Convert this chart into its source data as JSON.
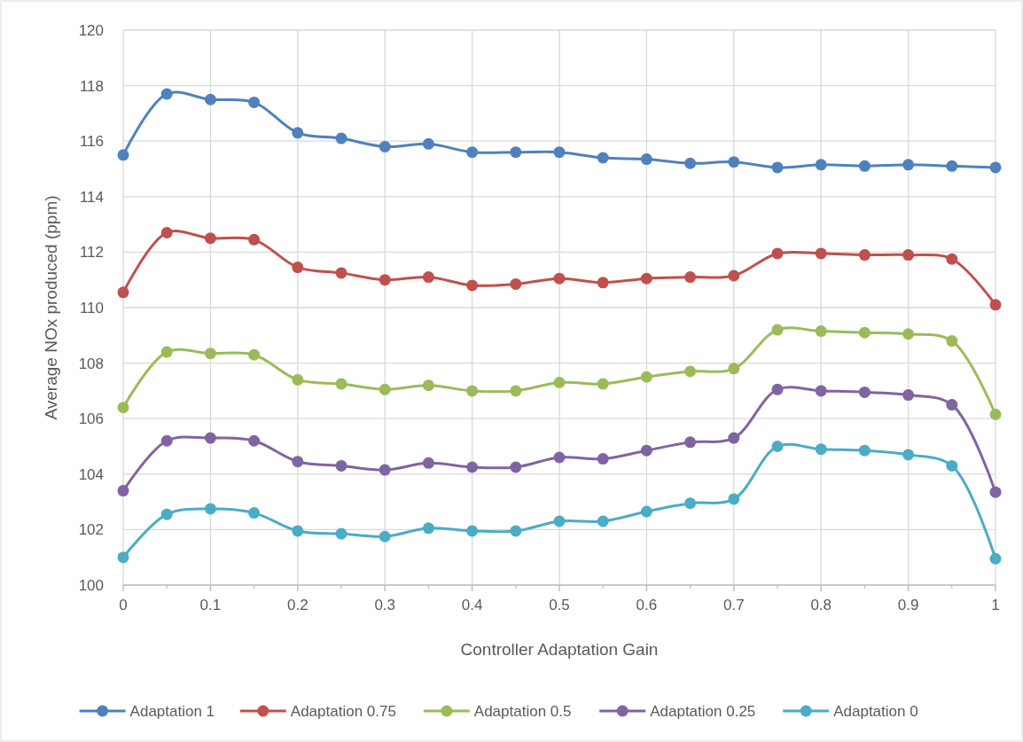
{
  "chart_data": {
    "type": "line",
    "xlabel": "Controller Adaptation Gain",
    "ylabel": "Average NOx produced (ppm)",
    "x": [
      0,
      0.05,
      0.1,
      0.15,
      0.2,
      0.25,
      0.3,
      0.35,
      0.4,
      0.45,
      0.5,
      0.55,
      0.6,
      0.65,
      0.7,
      0.75,
      0.8,
      0.85,
      0.9,
      0.95,
      1
    ],
    "series": [
      {
        "name": "Adaptation 1",
        "color": "#4f81bd",
        "values": [
          115.5,
          117.7,
          117.5,
          117.4,
          116.3,
          116.1,
          115.8,
          115.9,
          115.6,
          115.6,
          115.6,
          115.4,
          115.35,
          115.2,
          115.25,
          115.05,
          115.15,
          115.1,
          115.15,
          115.1,
          115.05
        ]
      },
      {
        "name": "Adaptation 0.75",
        "color": "#c0504d",
        "values": [
          110.55,
          112.7,
          112.5,
          112.45,
          111.45,
          111.25,
          111.0,
          111.1,
          110.8,
          110.85,
          111.05,
          110.9,
          111.05,
          111.1,
          111.15,
          111.95,
          111.95,
          111.9,
          111.9,
          111.75,
          110.1
        ]
      },
      {
        "name": "Adaptation 0.5",
        "color": "#9bbb59",
        "values": [
          106.4,
          108.4,
          108.35,
          108.3,
          107.4,
          107.25,
          107.05,
          107.2,
          107.0,
          107.0,
          107.3,
          107.25,
          107.5,
          107.7,
          107.8,
          109.2,
          109.15,
          109.1,
          109.05,
          108.8,
          106.15
        ]
      },
      {
        "name": "Adaptation 0.25",
        "color": "#8064a2",
        "values": [
          103.4,
          105.2,
          105.3,
          105.2,
          104.45,
          104.3,
          104.15,
          104.4,
          104.25,
          104.25,
          104.6,
          104.55,
          104.85,
          105.15,
          105.3,
          107.05,
          107.0,
          106.95,
          106.85,
          106.5,
          103.35
        ]
      },
      {
        "name": "Adaptation 0",
        "color": "#4bacc6",
        "values": [
          101.0,
          102.55,
          102.75,
          102.6,
          101.95,
          101.85,
          101.75,
          102.05,
          101.95,
          101.95,
          102.3,
          102.3,
          102.65,
          102.95,
          103.1,
          105.0,
          104.9,
          104.85,
          104.7,
          104.3,
          100.95
        ]
      }
    ],
    "xlim": [
      0,
      1
    ],
    "xticks": [
      0,
      0.1,
      0.2,
      0.3,
      0.4,
      0.5,
      0.6,
      0.7,
      0.8,
      0.9,
      1
    ],
    "ylim": [
      100,
      120
    ],
    "yticks": [
      100,
      102,
      104,
      106,
      108,
      110,
      112,
      114,
      116,
      118,
      120
    ],
    "grid": true,
    "legend": "bottom",
    "marker": "circle",
    "line_style": "solid"
  }
}
